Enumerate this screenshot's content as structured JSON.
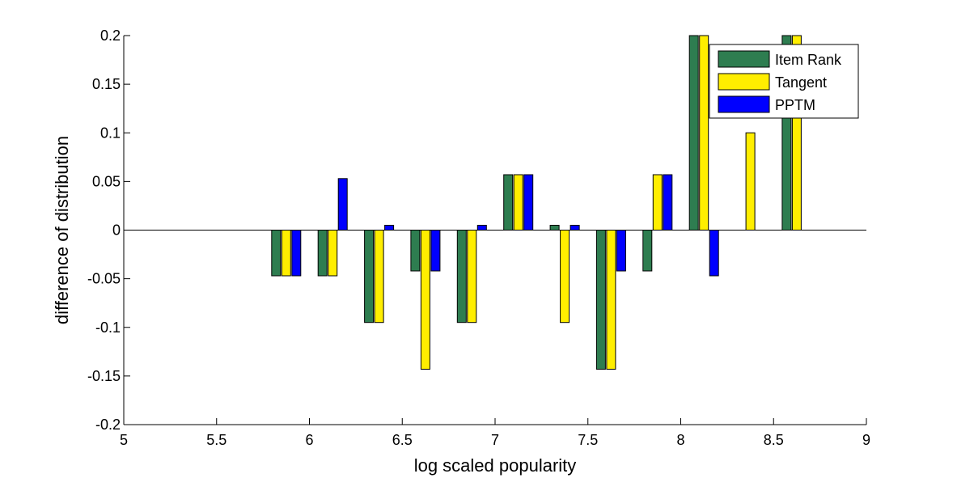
{
  "chart_data": {
    "type": "bar",
    "xlabel": "log scaled popularity",
    "ylabel": "difference of distribution",
    "xlim": [
      5,
      9
    ],
    "ylim": [
      -0.2,
      0.2
    ],
    "xticks": [
      "5",
      "5.5",
      "6",
      "6.5",
      "7",
      "7.5",
      "8",
      "8.5",
      "9"
    ],
    "yticks": [
      "-0.2",
      "-0.15",
      "-0.1",
      "-0.05",
      "0",
      "0.05",
      "0.1",
      "0.15",
      "0.2"
    ],
    "x": [
      5.875,
      6.125,
      6.375,
      6.625,
      6.875,
      7.125,
      7.375,
      7.625,
      7.875,
      8.125,
      8.375,
      8.625
    ],
    "series": [
      {
        "name": "Item Rank",
        "color": "#2e7d50",
        "values": [
          -0.047,
          -0.047,
          -0.095,
          -0.042,
          -0.095,
          0.057,
          0.005,
          -0.143,
          -0.042,
          0.2,
          0,
          0.2
        ]
      },
      {
        "name": "Tangent",
        "color": "#ffee00",
        "values": [
          -0.047,
          -0.047,
          -0.095,
          -0.143,
          -0.095,
          0.057,
          -0.095,
          -0.143,
          0.057,
          0.2,
          0.1,
          0.2
        ]
      },
      {
        "name": "PPTM",
        "color": "#0000ff",
        "values": [
          -0.047,
          0.053,
          0.005,
          -0.042,
          0.005,
          0.057,
          0.005,
          -0.042,
          0.057,
          -0.047,
          0,
          0
        ]
      }
    ],
    "grid": false,
    "legend_position": "top-right"
  }
}
